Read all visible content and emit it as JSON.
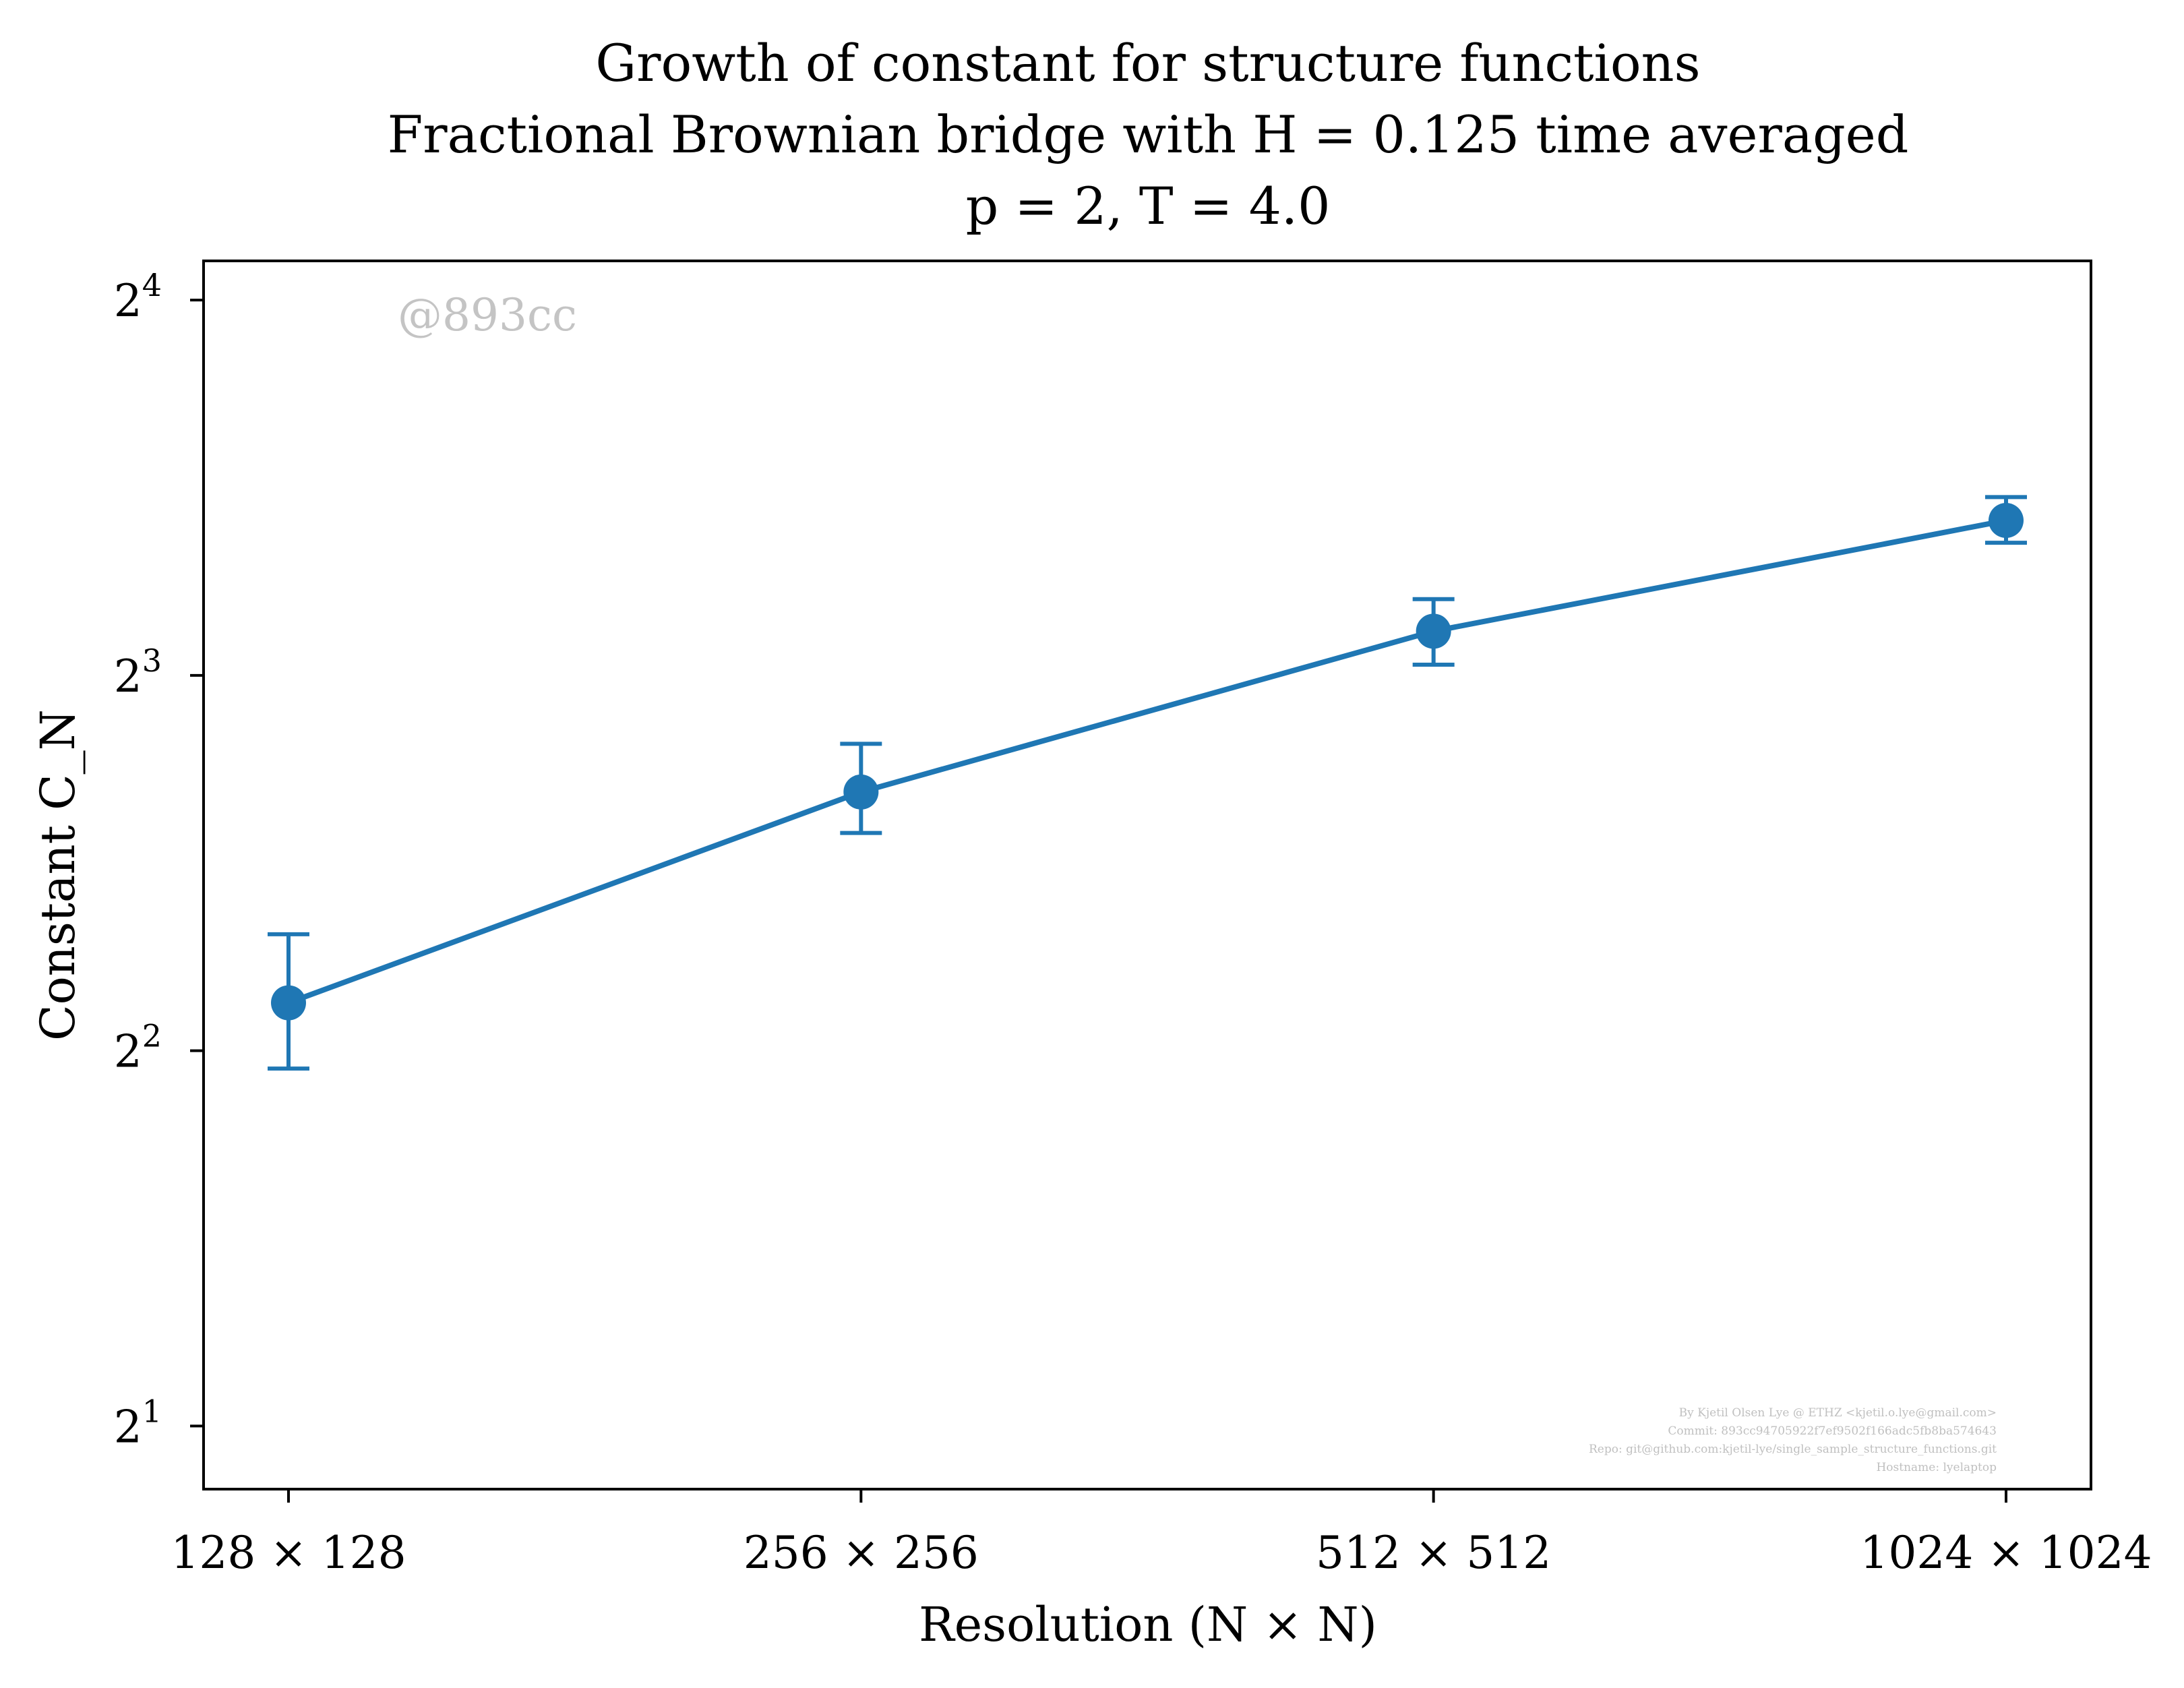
{
  "chart_data": {
    "type": "line",
    "title_lines": [
      "Growth of constant for structure functions",
      "Fractional Brownian bridge with H = 0.125 time averaged",
      "p = 2, T = 4.0"
    ],
    "xlabel": "Resolution (N × N)",
    "ylabel": "Constant C_N",
    "yscale": "log2",
    "ylim": [
      1.78,
      17.2
    ],
    "grid": false,
    "categories": [
      "128 × 128",
      "256 × 256",
      "512 × 512",
      "1024 × 1024"
    ],
    "y_ticks": [
      {
        "base": "2",
        "exp": "1",
        "value": 2
      },
      {
        "base": "2",
        "exp": "2",
        "value": 4
      },
      {
        "base": "2",
        "exp": "3",
        "value": 8
      },
      {
        "base": "2",
        "exp": "4",
        "value": 16
      }
    ],
    "series": [
      {
        "color": "#1f77b4",
        "values": [
          4.37,
          6.45,
          8.68,
          10.65
        ],
        "err_low": [
          3.87,
          5.98,
          8.16,
          10.22
        ],
        "err_high": [
          4.96,
          7.05,
          9.21,
          11.12
        ]
      }
    ],
    "watermark": "@893cc",
    "credits": [
      "By Kjetil Olsen Lye @ ETHZ <kjetil.o.lye@gmail.com>",
      "Commit: 893cc94705922f7ef9502f166adc5fb8ba574643",
      "Repo: git@github.com:kjetil-lye/single_sample_structure_functions.git",
      "Hostname: lyelaptop"
    ]
  }
}
